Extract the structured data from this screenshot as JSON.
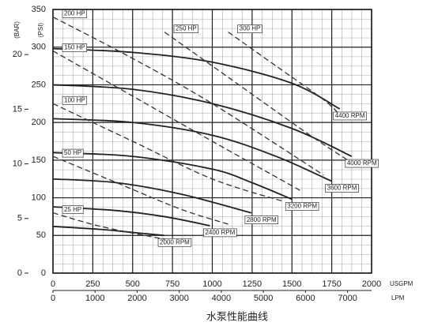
{
  "chart_data": {
    "type": "line",
    "caption": "水泵性能曲线",
    "y_label": "(PSI)",
    "y2_label": "(BAR)",
    "x_label": "USGPM",
    "x2_label": "LPM",
    "xlim": [
      0,
      2000
    ],
    "xticks": [
      0,
      250,
      500,
      750,
      1000,
      1250,
      1500,
      1750,
      2000
    ],
    "x2lim": [
      0,
      7570.8
    ],
    "x2ticks": [
      0,
      1000,
      2000,
      3000,
      4000,
      5000,
      6000,
      7000
    ],
    "ylim": [
      0,
      350
    ],
    "yticks": [
      0,
      50,
      100,
      150,
      200,
      250,
      300,
      350
    ],
    "y2lim": [
      0,
      24.13
    ],
    "y2ticks": [
      0,
      5,
      10,
      15,
      20
    ],
    "grid": true,
    "series": [
      {
        "name": "4400 RPM",
        "color": "#222",
        "dashed": false,
        "x": [
          0,
          500,
          1000,
          1500,
          1800
        ],
        "values": [
          298,
          293,
          280,
          252,
          218
        ]
      },
      {
        "name": "4000 RPM",
        "color": "#222",
        "dashed": false,
        "x": [
          0,
          500,
          1000,
          1500,
          1875
        ],
        "values": [
          250,
          244,
          225,
          192,
          155
        ]
      },
      {
        "name": "3600 RPM",
        "color": "#222",
        "dashed": false,
        "x": [
          0,
          500,
          1000,
          1400,
          1750
        ],
        "values": [
          205,
          200,
          183,
          155,
          122
        ]
      },
      {
        "name": "3200 RPM",
        "color": "#222",
        "dashed": false,
        "x": [
          0,
          500,
          1000,
          1250,
          1500
        ],
        "values": [
          160,
          155,
          138,
          120,
          98
        ]
      },
      {
        "name": "2800 RPM",
        "color": "#222",
        "dashed": false,
        "x": [
          0,
          400,
          800,
          1245
        ],
        "values": [
          125,
          120,
          105,
          80
        ]
      },
      {
        "name": "2400 RPM",
        "color": "#222",
        "dashed": false,
        "x": [
          0,
          400,
          700,
          985
        ],
        "values": [
          88,
          83,
          75,
          63
        ]
      },
      {
        "name": "2000 RPM",
        "color": "#222",
        "dashed": false,
        "x": [
          0,
          300,
          500,
          700
        ],
        "values": [
          62,
          58,
          54,
          50
        ]
      },
      {
        "name": "25 HP",
        "color": "#333",
        "dashed": true,
        "x": [
          0,
          300,
          700
        ],
        "values": [
          80,
          62,
          45
        ]
      },
      {
        "name": "50 HP",
        "color": "#333",
        "dashed": true,
        "x": [
          0,
          400,
          800,
          1100
        ],
        "values": [
          155,
          120,
          85,
          65
        ]
      },
      {
        "name": "100 HP",
        "color": "#333",
        "dashed": true,
        "x": [
          0,
          500,
          1000,
          1450
        ],
        "values": [
          225,
          175,
          125,
          95
        ]
      },
      {
        "name": "150 HP",
        "color": "#333",
        "dashed": true,
        "x": [
          0,
          500,
          1000,
          1550
        ],
        "values": [
          295,
          235,
          175,
          110
        ]
      },
      {
        "name": "200 HP",
        "color": "#333",
        "dashed": true,
        "x": [
          0,
          500,
          1000,
          1700
        ],
        "values": [
          340,
          285,
          225,
          130
        ]
      },
      {
        "name": "250 HP",
        "color": "#333",
        "dashed": true,
        "x": [
          700,
          1100,
          1600,
          1850
        ],
        "values": [
          320,
          260,
          185,
          150
        ]
      },
      {
        "name": "300 HP",
        "color": "#333",
        "dashed": true,
        "x": [
          1100,
          1400,
          1700,
          1800
        ],
        "values": [
          320,
          275,
          230,
          210
        ]
      }
    ]
  }
}
